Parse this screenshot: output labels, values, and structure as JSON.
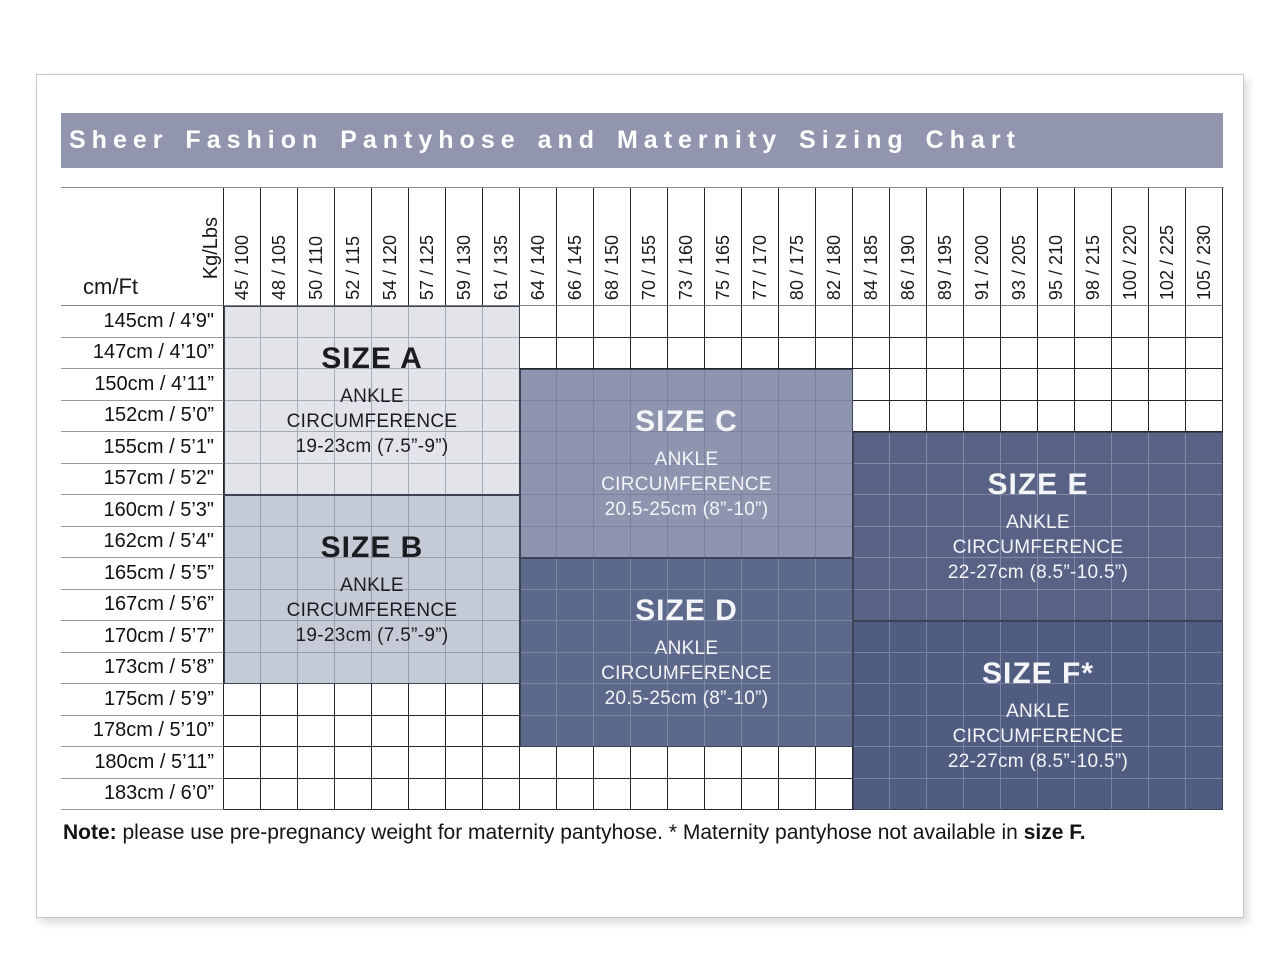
{
  "title": "Sheer Fashion Pantyhose and Maternity Sizing Chart",
  "corner": {
    "weight_unit": "Kg/Lbs",
    "height_unit": "cm/Ft"
  },
  "note": {
    "prefix": "Note:",
    "body": " please use pre-pregnancy weight for maternity pantyhose. * Maternity pantyhose not available in ",
    "suffix": "size F."
  },
  "colors": {
    "title_bar": "#9196ae",
    "title_text": "#ffffff",
    "size_a_fill": "#e2e4ea",
    "size_b_fill": "#c5cad7",
    "size_c_fill": "#8d95af",
    "size_d_fill": "#5d698b",
    "size_e_fill": "#576285",
    "size_f_fill": "#515d80"
  },
  "chart_data": {
    "type": "table",
    "title": "Sheer Fashion Pantyhose and Maternity Sizing Chart",
    "columns_kg_lbs": [
      "45 / 100",
      "48 / 105",
      "50 / 110",
      "52 / 115",
      "54 / 120",
      "57 / 125",
      "59 / 130",
      "61 / 135",
      "64 / 140",
      "66 / 145",
      "68 / 150",
      "70 / 155",
      "73 / 160",
      "75 / 165",
      "77 / 170",
      "80 / 175",
      "82 / 180",
      "84 / 185",
      "86 / 190",
      "89 / 195",
      "91 / 200",
      "93 / 205",
      "95 / 210",
      "98 / 215",
      "100 / 220",
      "102 / 225",
      "105 / 230"
    ],
    "rows_cm_ft": [
      "145cm / 4’9\"",
      "147cm / 4’10”",
      "150cm / 4’11”",
      "152cm / 5’0”",
      "155cm / 5’1\"",
      "157cm / 5’2\"",
      "160cm / 5’3\"",
      "162cm / 5’4\"",
      "165cm / 5’5”",
      "167cm / 5’6”",
      "170cm / 5’7”",
      "173cm / 5’8”",
      "175cm / 5’9”",
      "178cm / 5’10”",
      "180cm / 5’11”",
      "183cm / 6’0”"
    ],
    "empty_fill": "#ffffff",
    "empty_grid": "#25272c",
    "size_regions": [
      {
        "id": "A",
        "label": "SIZE A",
        "lines": [
          "ANKLE",
          "CIRCUMFERENCE",
          "19-23cm (7.5”-9”)"
        ],
        "ankle_circumference": "19-23cm (7.5”-9”)",
        "weight_range_kg_lbs": "45/100 to 61/135",
        "height_range_cm_ft": "145cm/4’9\" to 157cm/5’2\"",
        "cols": [
          1,
          8
        ],
        "rows": [
          1,
          6
        ],
        "fill": "#e2e4ea",
        "grid": "#a6abb8",
        "text": "#1b1c1f"
      },
      {
        "id": "B",
        "label": "SIZE B",
        "lines": [
          "ANKLE",
          "CIRCUMFERENCE",
          "19-23cm (7.5”-9”)"
        ],
        "ankle_circumference": "19-23cm (7.5”-9”)",
        "weight_range_kg_lbs": "45/100 to 61/135",
        "height_range_cm_ft": "160cm/5’3\" to 173cm/5’8”",
        "cols": [
          1,
          8
        ],
        "rows": [
          7,
          12
        ],
        "fill": "#c5cad7",
        "grid": "#989eb0",
        "text": "#1b1c1f"
      },
      {
        "id": "C",
        "label": "SIZE C",
        "lines": [
          "ANKLE",
          "CIRCUMFERENCE",
          "20.5-25cm (8”-10”)"
        ],
        "ankle_circumference": "20.5-25cm (8”-10”)",
        "weight_range_kg_lbs": "64/140 to 82/180",
        "height_range_cm_ft": "150cm/4’11” to 162cm/5’4\"",
        "cols": [
          9,
          17
        ],
        "rows": [
          3,
          8
        ],
        "fill": "#8d95af",
        "grid": "#7a82a0",
        "text": "#f4f5f9"
      },
      {
        "id": "D",
        "label": "SIZE D",
        "lines": [
          "ANKLE",
          "CIRCUMFERENCE",
          "20.5-25cm (8”-10”)"
        ],
        "ankle_circumference": "20.5-25cm (8”-10”)",
        "weight_range_kg_lbs": "64/140 to 82/180",
        "height_range_cm_ft": "165cm/5’5” to 178cm/5’10”",
        "cols": [
          9,
          17
        ],
        "rows": [
          9,
          14
        ],
        "fill": "#5d698b",
        "grid": "#7e87a3",
        "text": "#f4f5f9"
      },
      {
        "id": "E",
        "label": "SIZE E",
        "lines": [
          "ANKLE",
          "CIRCUMFERENCE",
          "22-27cm (8.5”-10.5”)"
        ],
        "ankle_circumference": "22-27cm (8.5”-10.5”)",
        "weight_range_kg_lbs": "84/185 to 105/230",
        "height_range_cm_ft": "155cm/5’1\" to 167cm/5’6”",
        "cols": [
          18,
          27
        ],
        "rows": [
          5,
          10
        ],
        "fill": "#576285",
        "grid": "#8089a6",
        "text": "#f4f5f9"
      },
      {
        "id": "F",
        "label": "SIZE F*",
        "lines": [
          "ANKLE",
          "CIRCUMFERENCE",
          "22-27cm (8.5”-10.5”)"
        ],
        "ankle_circumference": "22-27cm (8.5”-10.5”)",
        "weight_range_kg_lbs": "84/185 to 105/230",
        "height_range_cm_ft": "170cm/5’7” to 183cm/6’0”",
        "cols": [
          18,
          27
        ],
        "rows": [
          11,
          16
        ],
        "fill": "#515d80",
        "grid": "#7a83a1",
        "text": "#f4f5f9"
      }
    ],
    "note": "Note: please use pre-pregnancy weight for maternity pantyhose. * Maternity pantyhose not available in size F."
  }
}
